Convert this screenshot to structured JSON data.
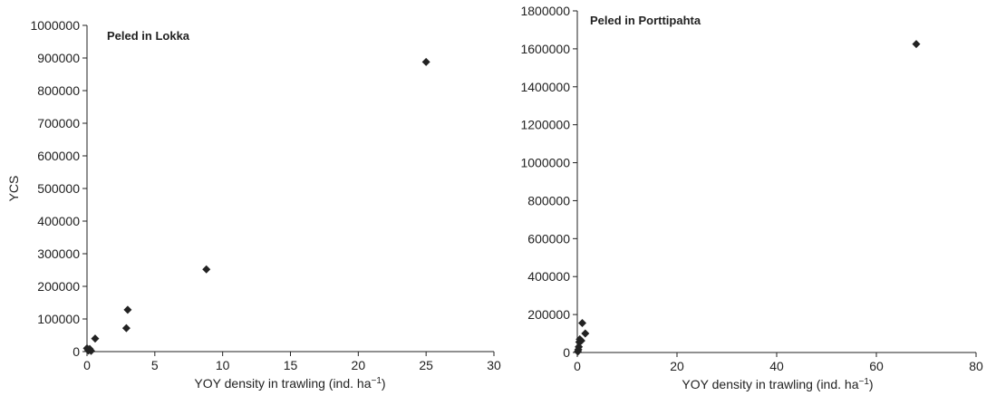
{
  "chart_data": [
    {
      "type": "scatter",
      "title": "Peled in Lokka",
      "xlabel": "YOY density in trawling (ind. ha",
      "xlabel_sup": "−1",
      "xlabel_close": ")",
      "ylabel": "YCS",
      "xlim": [
        0,
        30
      ],
      "ylim": [
        0,
        1000000
      ],
      "xticks": [
        "0",
        "5",
        "10",
        "15",
        "20",
        "25",
        "30"
      ],
      "yticks": [
        "0",
        "100000",
        "200000",
        "300000",
        "400000",
        "500000",
        "600000",
        "700000",
        "800000",
        "900000",
        "1000000"
      ],
      "x": [
        0,
        0.1,
        0.2,
        0.3,
        0.6,
        2.9,
        3.0,
        8.8,
        25.0
      ],
      "y": [
        10000,
        3000,
        8000,
        2000,
        40000,
        72000,
        128000,
        252000,
        888000
      ],
      "marker": "diamond",
      "color": "#222222"
    },
    {
      "type": "scatter",
      "title": "Peled in Porttipahta",
      "xlabel": "YOY density in trawling (ind. ha",
      "xlabel_sup": "−1",
      "xlabel_close": ")",
      "ylabel": "",
      "xlim": [
        0,
        80
      ],
      "ylim": [
        0,
        1800000
      ],
      "xticks": [
        "0",
        "20",
        "40",
        "60",
        "80"
      ],
      "yticks": [
        "0",
        "200000",
        "400000",
        "600000",
        "800000",
        "1000000",
        "1200000",
        "1400000",
        "1600000",
        "1800000"
      ],
      "x": [
        0.1,
        0.2,
        0.3,
        0.4,
        0.5,
        0.8,
        1.0,
        1.6,
        68.0
      ],
      "y": [
        5000,
        15000,
        30000,
        55000,
        70000,
        62000,
        155000,
        100000,
        1625000
      ],
      "marker": "diamond",
      "color": "#222222"
    }
  ]
}
